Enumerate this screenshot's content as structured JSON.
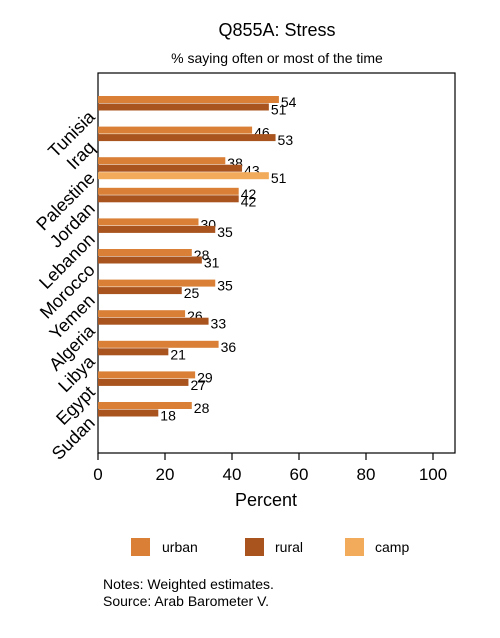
{
  "chart_data": {
    "type": "bar",
    "orientation": "horizontal",
    "title": "Q855A: Stress",
    "subtitle": "% saying often or most of the time",
    "xlabel": "Percent",
    "xlim": [
      0,
      105
    ],
    "xticks": [
      0,
      20,
      40,
      60,
      80,
      100
    ],
    "grid": false,
    "legend_position": "bottom",
    "categories": [
      "Tunisia",
      "Iraq",
      "Palestine",
      "Jordan",
      "Lebanon",
      "Morocco",
      "Yemen",
      "Algeria",
      "Libya",
      "Egypt",
      "Sudan"
    ],
    "series": [
      {
        "name": "urban",
        "color": "#d98036",
        "values": [
          54,
          46,
          38,
          42,
          30,
          28,
          35,
          26,
          36,
          29,
          28
        ]
      },
      {
        "name": "rural",
        "color": "#a9541e",
        "values": [
          51,
          53,
          43,
          42,
          35,
          31,
          25,
          33,
          21,
          27,
          18
        ]
      },
      {
        "name": "camp",
        "color": "#f2ab5b",
        "values": [
          null,
          null,
          51,
          null,
          null,
          null,
          null,
          null,
          null,
          null,
          null
        ]
      }
    ]
  },
  "notes": {
    "line1": "Notes: Weighted estimates.",
    "line2": "Source: Arab Barometer V."
  }
}
